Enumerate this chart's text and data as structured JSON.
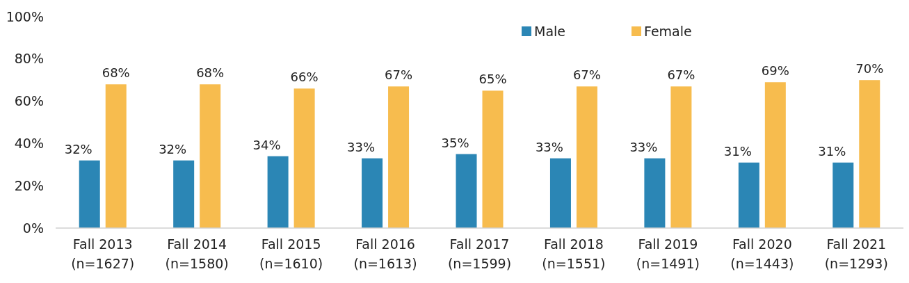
{
  "chart_data": {
    "type": "bar",
    "categories": [
      "Fall 2013\n(n=1627)",
      "Fall 2014\n(n=1580)",
      "Fall 2015\n(n=1610)",
      "Fall 2016\n(n=1613)",
      "Fall 2017\n(n=1599)",
      "Fall 2018\n(n=1551)",
      "Fall 2019\n(n=1491)",
      "Fall 2020\n(n=1443)",
      "Fall 2021\n(n=1293)"
    ],
    "series": [
      {
        "name": "Male",
        "color": "#2b86b5",
        "values": [
          32,
          32,
          34,
          33,
          35,
          33,
          33,
          31,
          31
        ],
        "value_labels": [
          "32%",
          "32%",
          "34%",
          "33%",
          "35%",
          "33%",
          "33%",
          "31%",
          "31%"
        ]
      },
      {
        "name": "Female",
        "color": "#f7bc4e",
        "values": [
          68,
          68,
          66,
          67,
          65,
          67,
          67,
          69,
          70
        ],
        "value_labels": [
          "68%",
          "68%",
          "66%",
          "67%",
          "65%",
          "67%",
          "67%",
          "69%",
          "70%"
        ]
      }
    ],
    "ylim": [
      0,
      100
    ],
    "yticks": [
      {
        "value": 0,
        "label": "0%"
      },
      {
        "value": 20,
        "label": "20%"
      },
      {
        "value": 40,
        "label": "40%"
      },
      {
        "value": 60,
        "label": "60%"
      },
      {
        "value": 80,
        "label": "80%"
      },
      {
        "value": 100,
        "label": "100%"
      }
    ],
    "grid": false,
    "legend": "top right"
  }
}
